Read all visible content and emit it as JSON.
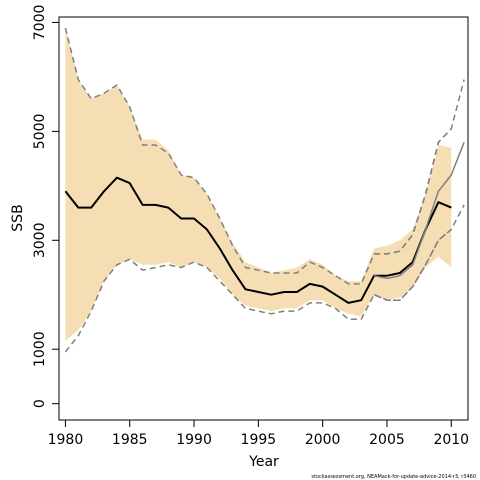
{
  "chart_data": {
    "type": "line",
    "title": "",
    "xlabel": "Year",
    "ylabel": "SSB",
    "xlim": [
      1979.5,
      2011.3
    ],
    "ylim": [
      -300,
      7100
    ],
    "x_ticks": [
      "1980",
      "1985",
      "1990",
      "1995",
      "2000",
      "2005",
      "2010"
    ],
    "y_ticks": [
      "0",
      "1000",
      "3000",
      "5000",
      "7000"
    ],
    "grid": false,
    "footnote": "stockassessment.org, NEAMack-for-update-advice-2014-r3, r3460",
    "colors": {
      "band": "#f5deb3",
      "estimate": "#000000",
      "bound": "#808080",
      "forecast": "#808080"
    },
    "x": [
      1980,
      1981,
      1982,
      1983,
      1984,
      1985,
      1986,
      1987,
      1988,
      1989,
      1990,
      1991,
      1992,
      1993,
      1994,
      1995,
      1996,
      1997,
      1998,
      1999,
      2000,
      2001,
      2002,
      2003,
      2004,
      2005,
      2006,
      2007,
      2008,
      2009,
      2010
    ],
    "series": [
      {
        "values": [
          3900,
          3600,
          3600,
          3900,
          4150,
          4050,
          3650,
          3650,
          3600,
          3400,
          3400,
          3200,
          2850,
          2450,
          2100,
          2050,
          2000,
          2050,
          2050,
          2200,
          2150,
          2000,
          1850,
          1900,
          2350,
          2350,
          2400,
          2600,
          3200,
          3700,
          3600
        ]
      },
      {
        "values": [
          6900,
          5950,
          5600,
          5700,
          5850,
          5450,
          4750,
          4750,
          4600,
          4200,
          4150,
          3850,
          3400,
          2900,
          2500,
          2450,
          2400,
          2400,
          2400,
          2600,
          2500,
          2350,
          2200,
          2200,
          2750,
          2750,
          2800,
          3100,
          3850,
          4800,
          5050
        ]
      },
      {
        "values": [
          950,
          1250,
          1700,
          2250,
          2550,
          2650,
          2450,
          2500,
          2550,
          2500,
          2600,
          2500,
          2250,
          2000,
          1750,
          1700,
          1650,
          1700,
          1700,
          1850,
          1850,
          1750,
          1550,
          1550,
          2000,
          1900,
          1900,
          2150,
          2550,
          3000,
          3200
        ]
      },
      {
        "x": [
          2004,
          2005,
          2006,
          2007,
          2008,
          2009,
          2010,
          2011
        ],
        "values": [
          2350,
          2300,
          2350,
          2550,
          3200,
          3900,
          4200,
          4800
        ]
      },
      {
        "x": [
          2004,
          2005,
          2006,
          2007,
          2008,
          2009,
          2010,
          2011
        ],
        "values": [
          2750,
          2750,
          2800,
          3100,
          3850,
          4800,
          5050,
          5950
        ]
      },
      {
        "x": [
          2004,
          2005,
          2006,
          2007,
          2008,
          2009,
          2010,
          2011
        ],
        "values": [
          2000,
          1900,
          1900,
          2150,
          2550,
          3000,
          3200,
          3650
        ]
      }
    ],
    "band_upper": [
      6900,
      5950,
      5600,
      5700,
      5850,
      5450,
      4850,
      4850,
      4650,
      4200,
      4150,
      3850,
      3400,
      2950,
      2600,
      2500,
      2400,
      2450,
      2500,
      2650,
      2550,
      2350,
      2250,
      2250,
      2850,
      2900,
      3000,
      3200,
      3850,
      4750,
      4700
    ],
    "band_lower": [
      1150,
      1350,
      1700,
      2250,
      2550,
      2650,
      2550,
      2550,
      2600,
      2500,
      2600,
      2500,
      2300,
      2000,
      1800,
      1750,
      1700,
      1750,
      1750,
      1900,
      1900,
      1750,
      1650,
      1600,
      2000,
      1900,
      1950,
      2150,
      2500,
      2700,
      2500
    ]
  }
}
